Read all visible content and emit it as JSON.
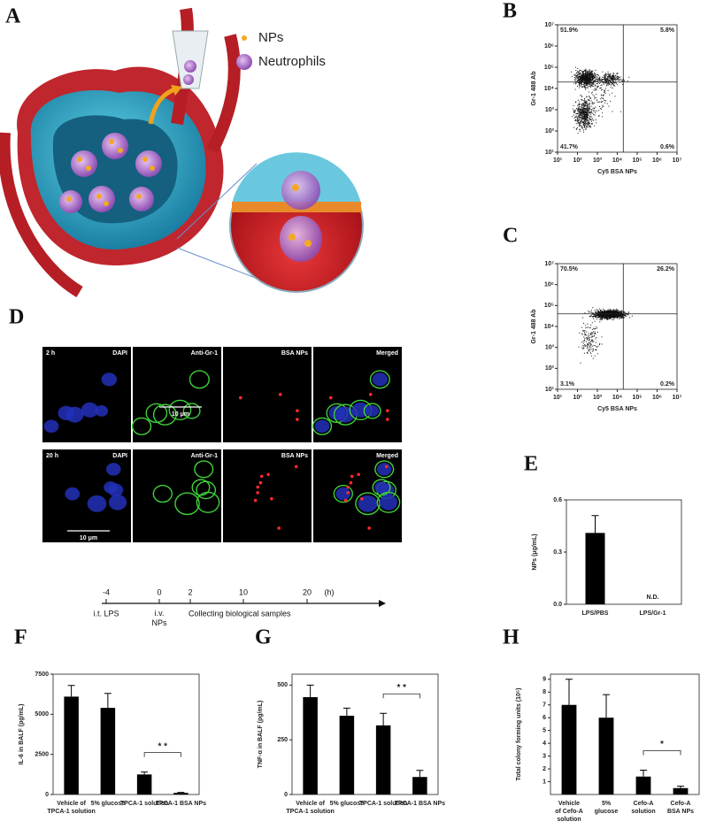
{
  "panel_a": {
    "label": "A",
    "legend": [
      "NPs",
      "Neutrophils"
    ]
  },
  "panel_d": {
    "label": "D",
    "rows": [
      "2 h",
      "20 h"
    ],
    "channels": [
      "DAPI",
      "Anti-Gr-1",
      "BSA NPs",
      "Merged"
    ],
    "scale_bar": "10 μm"
  },
  "timeline": {
    "ticks": [
      -4,
      0,
      2,
      10,
      20
    ],
    "unit": "(h)",
    "events": [
      "i.t. LPS",
      "i.v. NPs",
      "Collecting biological samples"
    ]
  },
  "chart_data": [
    {
      "type": "scatter",
      "panel_label": "B",
      "xlabel": "Cy5 BSA NPs",
      "ylabel": "Gr-1 488 Ab",
      "log_scale": true,
      "xlim": [
        10,
        10000000
      ],
      "ylim": [
        10,
        10000000
      ],
      "xticks": [
        {
          "value": 10,
          "label": "10¹"
        },
        {
          "value": 100,
          "label": "10²"
        },
        {
          "value": 1000,
          "label": "10³"
        },
        {
          "value": 10000,
          "label": "10⁴"
        },
        {
          "value": 100000,
          "label": "10⁵"
        },
        {
          "value": 1000000,
          "label": "10⁶"
        },
        {
          "value": 10000000,
          "label": "10⁷"
        }
      ],
      "yticks": [
        {
          "value": 10,
          "label": "10¹"
        },
        {
          "value": 100,
          "label": "10²"
        },
        {
          "value": 1000,
          "label": "10³"
        },
        {
          "value": 10000,
          "label": "10⁴"
        },
        {
          "value": 100000,
          "label": "10⁵"
        },
        {
          "value": 1000000,
          "label": "10⁶"
        },
        {
          "value": 10000000,
          "label": "10⁷"
        }
      ],
      "gate": {
        "x": 20000,
        "y": 20000
      },
      "quadrant_labels": {
        "upper_left": "51.9%",
        "upper_right": "5.8%",
        "lower_left": "41.7%",
        "lower_right": "0.6%"
      }
    },
    {
      "type": "scatter",
      "panel_label": "C",
      "xlabel": "Cy5 BSA NPs",
      "ylabel": "Gr-1 488 Ab",
      "log_scale": true,
      "xlim": [
        10,
        10000000
      ],
      "ylim": [
        10,
        10000000
      ],
      "xticks": [
        {
          "value": 10,
          "label": "10¹"
        },
        {
          "value": 100,
          "label": "10²"
        },
        {
          "value": 1000,
          "label": "10³"
        },
        {
          "value": 10000,
          "label": "10⁴"
        },
        {
          "value": 100000,
          "label": "10⁵"
        },
        {
          "value": 1000000,
          "label": "10⁶"
        },
        {
          "value": 10000000,
          "label": "10⁷"
        }
      ],
      "yticks": [
        {
          "value": 10,
          "label": "10¹"
        },
        {
          "value": 100,
          "label": "10²"
        },
        {
          "value": 1000,
          "label": "10³"
        },
        {
          "value": 10000,
          "label": "10⁴"
        },
        {
          "value": 100000,
          "label": "10⁵"
        },
        {
          "value": 1000000,
          "label": "10⁶"
        },
        {
          "value": 10000000,
          "label": "10⁷"
        }
      ],
      "gate": {
        "x": 20000,
        "y": 40000
      },
      "quadrant_labels": {
        "upper_left": "70.5%",
        "upper_right": "26.2%",
        "lower_left": "3.1%",
        "lower_right": "0.2%"
      }
    },
    {
      "type": "bar",
      "panel_label": "E",
      "ylabel": "NPs (μg/mL)",
      "categories": [
        "LPS/PBS",
        "LPS/Gr-1"
      ],
      "values": [
        0.41,
        null
      ],
      "errors": [
        0.1,
        null
      ],
      "missing_label": "N.D.",
      "color": "#000000",
      "ylim": [
        0,
        0.6
      ],
      "yticks": [
        {
          "value": 0,
          "label": "0.0"
        },
        {
          "value": 0.3,
          "label": "0.3"
        },
        {
          "value": 0.6,
          "label": "0.6"
        }
      ]
    },
    {
      "type": "bar",
      "panel_label": "F",
      "ylabel": "IL-6 in BALF (pg/mL)",
      "categories": [
        "Vehicle of TPCA-1 solution",
        "5% glucose",
        "TPCA-1 solution",
        "TPCA-1 BSA NPs"
      ],
      "values": [
        6100,
        5400,
        1250,
        100
      ],
      "errors": [
        700,
        900,
        150,
        30
      ],
      "significance": "* *",
      "color": "#000000",
      "ylim": [
        0,
        7500
      ],
      "yticks": [
        0,
        2500,
        5000,
        7500
      ]
    },
    {
      "type": "bar",
      "panel_label": "G",
      "ylabel": "TNF-α in BALF (pg/mL)",
      "categories": [
        "Vehicle of TPCA-1 solution",
        "5% glucose",
        "TPCA-1 solution",
        "TPCA-1 BSA NPs"
      ],
      "values": [
        445,
        360,
        316,
        80
      ],
      "errors": [
        55,
        35,
        55,
        30
      ],
      "significance": "* *",
      "color": "#000000",
      "ylim": [
        0,
        550
      ],
      "yticks": [
        0,
        250,
        500
      ]
    },
    {
      "type": "bar",
      "panel_label": "H",
      "ylabel": "Total colony forming units (10⁵)",
      "categories": [
        "Vehicle of Cefo-A solution",
        "5% glucose",
        "Cefo-A solution",
        "Cefo-A BSA NPs"
      ],
      "values": [
        7,
        6,
        1.4,
        0.5
      ],
      "errors": [
        2,
        1.8,
        0.5,
        0.15
      ],
      "significance": "*",
      "color": "#000000",
      "ylim": [
        0,
        9.4
      ],
      "yticks": [
        1,
        2,
        3,
        4,
        5,
        6,
        7,
        8,
        9
      ]
    }
  ]
}
